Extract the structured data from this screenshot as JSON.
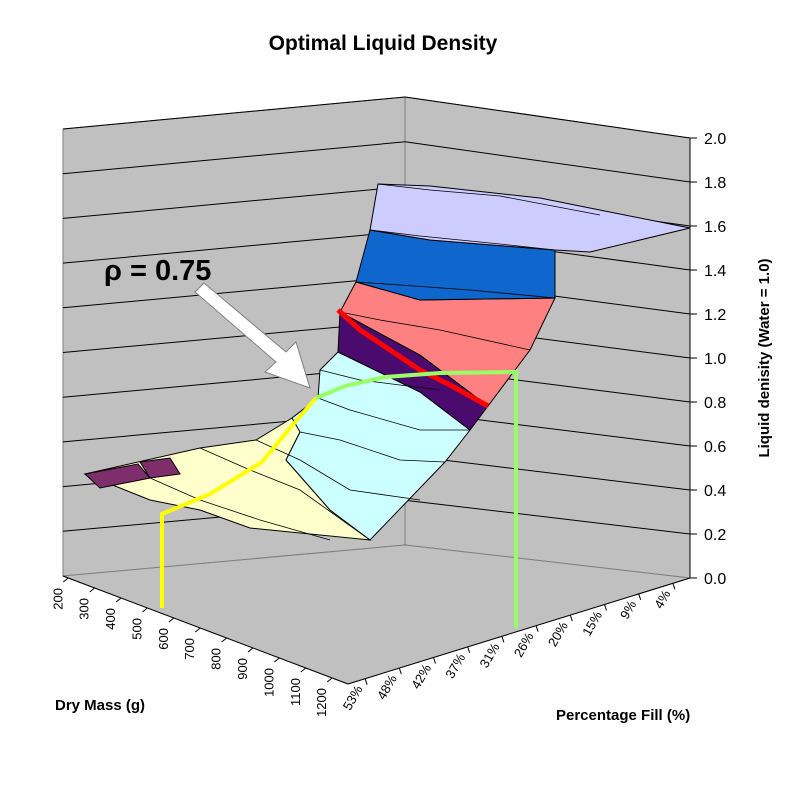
{
  "chart_data": {
    "type": "surface3d",
    "title": "Optimal Liquid Density",
    "xlabel": "Dry Mass (g)",
    "ylabel": "Percentage Fill (%)",
    "zlabel": "Liquid denisity (Water = 1.0)",
    "x_ticks": [
      "200",
      "300",
      "400",
      "500",
      "600",
      "700",
      "800",
      "900",
      "1000",
      "1100",
      "1200"
    ],
    "y_ticks": [
      "53%",
      "48%",
      "42%",
      "37%",
      "31%",
      "26%",
      "20%",
      "15%",
      "9%",
      "4%"
    ],
    "z_ticks": [
      "0.0",
      "0.2",
      "0.4",
      "0.6",
      "0.8",
      "1.0",
      "1.2",
      "1.4",
      "1.6",
      "1.8",
      "2.0"
    ],
    "zlim": [
      0,
      2
    ],
    "grid": true,
    "band_colors": [
      "#7e2f6b",
      "#ffffcc",
      "#ccffff",
      "#4b0a6e",
      "#ff8080",
      "#0f66cc",
      "#ccccff"
    ],
    "annotation": "ρ = 0.75",
    "highlight": {
      "density_contour": 1.0,
      "contour_color": "#ff0000",
      "yellow_path_color": "#ffff00",
      "green_path_color": "#99ff66"
    }
  }
}
